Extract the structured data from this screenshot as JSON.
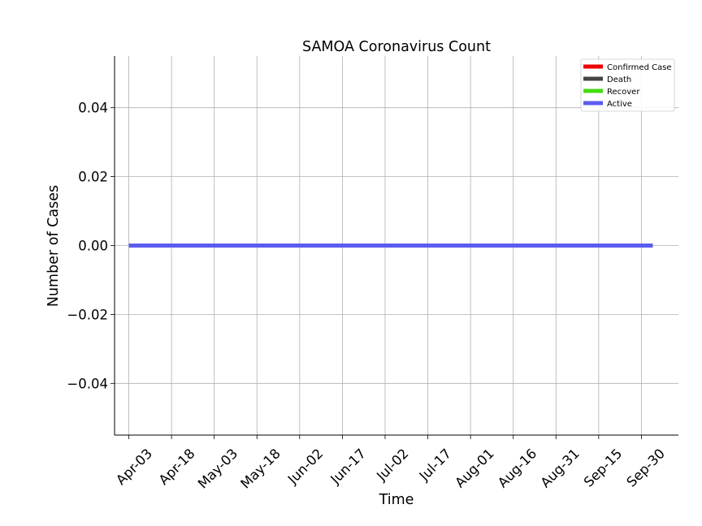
{
  "chart_data": {
    "type": "line",
    "title": "SAMOA Coronavirus Count",
    "xlabel": "Time",
    "ylabel": "Number of Cases",
    "x_ticks": [
      "Apr-03",
      "Apr-18",
      "May-03",
      "May-18",
      "Jun-02",
      "Jun-17",
      "Jul-02",
      "Jul-17",
      "Aug-01",
      "Aug-16",
      "Aug-31",
      "Sep-15",
      "Sep-30"
    ],
    "x_range": [
      "Mar-29",
      "Oct-13"
    ],
    "y_ticks": [
      "−0.04",
      "−0.02",
      "0.00",
      "0.02",
      "0.04"
    ],
    "y_tick_values": [
      -0.04,
      -0.02,
      0.0,
      0.02,
      0.04
    ],
    "ylim": [
      -0.055,
      0.055
    ],
    "grid": true,
    "legend_position": "top-right",
    "series": [
      {
        "name": "Confirmed Case",
        "color": "#ee0000",
        "x": [
          "Apr-03",
          "Oct-04"
        ],
        "values": [
          0,
          0
        ]
      },
      {
        "name": "Death",
        "color": "#444444",
        "x": [
          "Apr-03",
          "Oct-04"
        ],
        "values": [
          0,
          0
        ]
      },
      {
        "name": "Recover",
        "color": "#44dd11",
        "x": [
          "Apr-03",
          "Oct-04"
        ],
        "values": [
          0,
          0
        ]
      },
      {
        "name": "Active",
        "color": "#5c5cf0",
        "x": [
          "Apr-03",
          "Oct-04"
        ],
        "values": [
          0,
          0
        ]
      }
    ]
  }
}
